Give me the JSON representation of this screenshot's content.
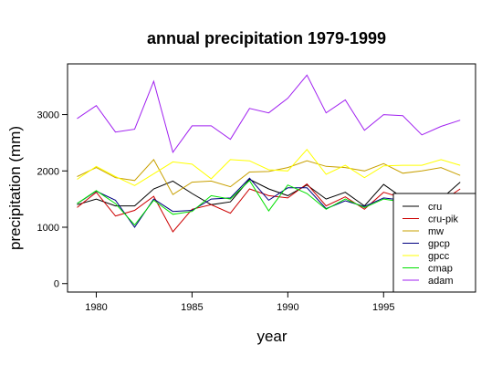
{
  "chart_data": {
    "type": "line",
    "title": "annual precipitation 1979-1999",
    "xlabel": "year",
    "ylabel": "precipitation (mm)",
    "xlim": [
      1978.5,
      1999.8
    ],
    "ylim": [
      -150,
      3900
    ],
    "xticks": [
      1980,
      1985,
      1990,
      1995
    ],
    "yticks": [
      0,
      1000,
      2000,
      3000
    ],
    "legend_position": "bottom-right",
    "grid": false,
    "x": [
      1979,
      1980,
      1981,
      1982,
      1983,
      1984,
      1985,
      1986,
      1987,
      1988,
      1989,
      1990,
      1991,
      1992,
      1993,
      1994,
      1995,
      1996,
      1997,
      1998,
      1999
    ],
    "series": [
      {
        "name": "cru",
        "color": "#000000",
        "values": [
          1400,
          1500,
          1380,
          1380,
          1680,
          1820,
          1600,
          1400,
          1450,
          1850,
          1680,
          1560,
          1750,
          1500,
          1620,
          1380,
          1760,
          1520,
          1400,
          1500,
          1800
        ]
      },
      {
        "name": "cru-pik",
        "color": "#cc0000",
        "values": [
          1350,
          1620,
          1200,
          1300,
          1550,
          920,
          1320,
          1400,
          1250,
          1680,
          1560,
          1520,
          1770,
          1380,
          1540,
          1320,
          1620,
          1520,
          1440,
          1450,
          1680
        ]
      },
      {
        "name": "mw",
        "color": "#c8a000",
        "values": [
          1900,
          2060,
          1880,
          1830,
          2200,
          1580,
          1800,
          1820,
          1720,
          1980,
          1990,
          2060,
          2180,
          2080,
          2060,
          2000,
          2130,
          1960,
          2000,
          2060,
          1920
        ]
      },
      {
        "name": "gpcp",
        "color": "#000080",
        "values": [
          1420,
          1640,
          1480,
          1000,
          1500,
          1280,
          1300,
          1500,
          1520,
          1870,
          1480,
          1700,
          1700,
          1330,
          1470,
          1370,
          1520,
          1480,
          1380,
          1400,
          1500
        ]
      },
      {
        "name": "gpcc",
        "color": "#ffff00",
        "values": [
          1850,
          2080,
          1900,
          1740,
          1950,
          2160,
          2120,
          1860,
          2200,
          2180,
          2020,
          2000,
          2380,
          1940,
          2100,
          1880,
          2090,
          2100,
          2100,
          2200,
          2100
        ]
      },
      {
        "name": "cmap",
        "color": "#00e000",
        "values": [
          1420,
          1650,
          1420,
          1040,
          1480,
          1230,
          1280,
          1560,
          1500,
          1830,
          1290,
          1750,
          1600,
          1320,
          1500,
          1350,
          1500,
          1450,
          1350,
          1400,
          1500
        ]
      },
      {
        "name": "adam",
        "color": "#a020f0",
        "values": [
          2930,
          3160,
          2690,
          2740,
          3590,
          2330,
          2800,
          2800,
          2560,
          3110,
          3030,
          3290,
          3700,
          3030,
          3260,
          2720,
          3000,
          2980,
          2640,
          2790,
          2900
        ]
      }
    ]
  }
}
